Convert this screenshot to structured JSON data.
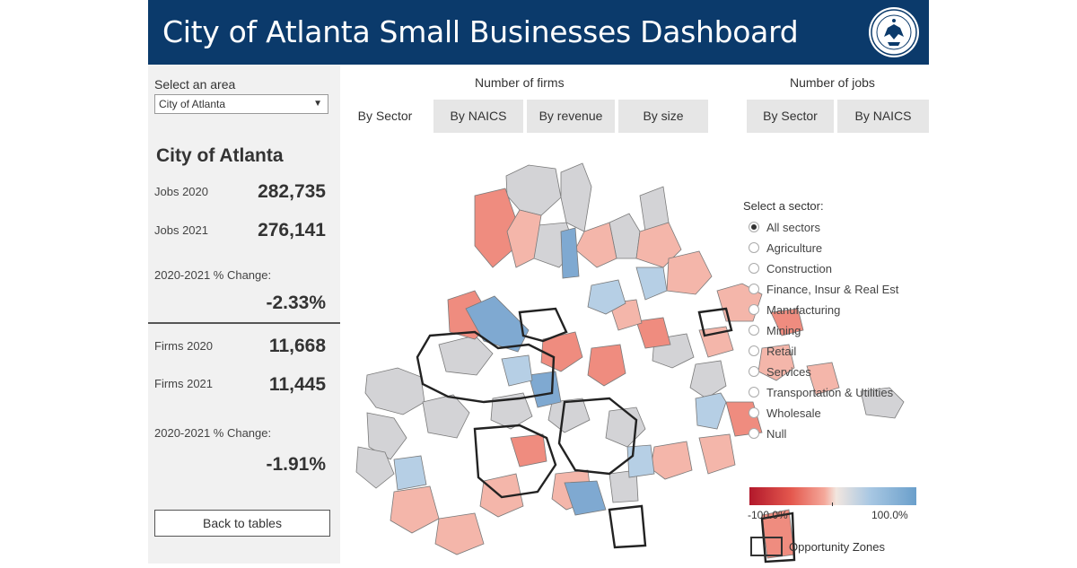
{
  "header": {
    "title": "City of Atlanta Small Businesses Dashboard",
    "seal_icon": "city-seal-icon"
  },
  "sidebar": {
    "area_label": "Select an area",
    "area_value": "City of Atlanta",
    "area_name": "City of Atlanta",
    "jobs_2020_label": "Jobs 2020",
    "jobs_2020_value": "282,735",
    "jobs_2021_label": "Jobs 2021",
    "jobs_2021_value": "276,141",
    "jobs_change_label": "2020-2021 % Change:",
    "jobs_change_value": "-2.33%",
    "firms_2020_label": "Firms 2020",
    "firms_2020_value": "11,668",
    "firms_2021_label": "Firms 2021",
    "firms_2021_value": "11,445",
    "firms_change_label": "2020-2021 % Change:",
    "firms_change_value": "-1.91%",
    "back_button": "Back to tables"
  },
  "tabs": {
    "firms_heading": "Number of firms",
    "jobs_heading": "Number of jobs",
    "firms_tabs": [
      "By Sector",
      "By NAICS",
      "By revenue",
      "By size"
    ],
    "jobs_tabs": [
      "By Sector",
      "By NAICS"
    ],
    "active_tab": "By Sector"
  },
  "sector_filter": {
    "title": "Select a sector:",
    "selected": "All sectors",
    "options": [
      "All sectors",
      "Agriculture",
      "Construction",
      "Finance, Insur & Real Est",
      "Manufacturing",
      "Mining",
      "Retail",
      "Services",
      "Transportation & Utilities",
      "Wholesale",
      "Null"
    ]
  },
  "legend": {
    "min_label": "-100.0%",
    "max_label": "100.0%",
    "zones_label": "Opportunity Zones",
    "colors": {
      "negative": "#b2182b",
      "neutral": "#f2e6df",
      "positive": "#6a9fcb",
      "no_data": "#d3d3d6"
    }
  }
}
